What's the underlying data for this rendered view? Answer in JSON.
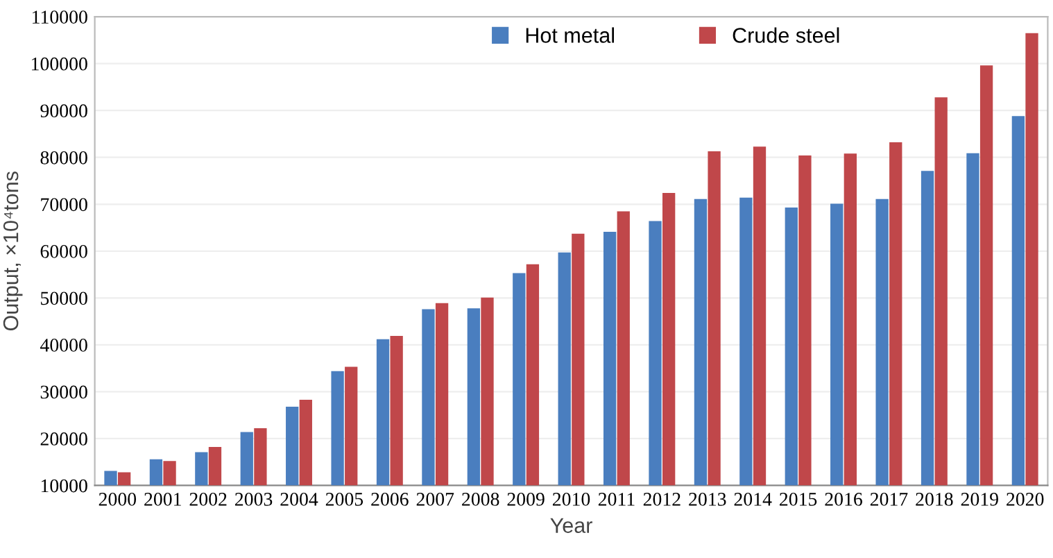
{
  "chart_data": {
    "type": "bar",
    "xlabel": "Year",
    "ylabel": "Output, ×10⁴tons",
    "categories": [
      "2000",
      "2001",
      "2002",
      "2003",
      "2004",
      "2005",
      "2006",
      "2007",
      "2008",
      "2009",
      "2010",
      "2011",
      "2012",
      "2013",
      "2014",
      "2015",
      "2016",
      "2017",
      "2018",
      "2019",
      "2020"
    ],
    "series": [
      {
        "name": "Hot metal",
        "color": "#4a7ebf",
        "values": [
          13100,
          15600,
          17100,
          21400,
          26800,
          34400,
          41200,
          47600,
          47800,
          55300,
          59700,
          64100,
          66400,
          71100,
          71400,
          69300,
          70100,
          71100,
          77100,
          80900,
          88800
        ]
      },
      {
        "name": "Crude steel",
        "color": "#c0474a",
        "values": [
          12800,
          15200,
          18200,
          22200,
          28300,
          35300,
          41900,
          48900,
          50100,
          57200,
          63700,
          68500,
          72400,
          81300,
          82300,
          80400,
          80800,
          83200,
          92800,
          99600,
          106500
        ]
      }
    ],
    "ylim": [
      10000,
      110000
    ],
    "yticks": [
      10000,
      20000,
      30000,
      40000,
      50000,
      60000,
      70000,
      80000,
      90000,
      100000,
      110000
    ],
    "grid": "y",
    "legend": "top"
  }
}
